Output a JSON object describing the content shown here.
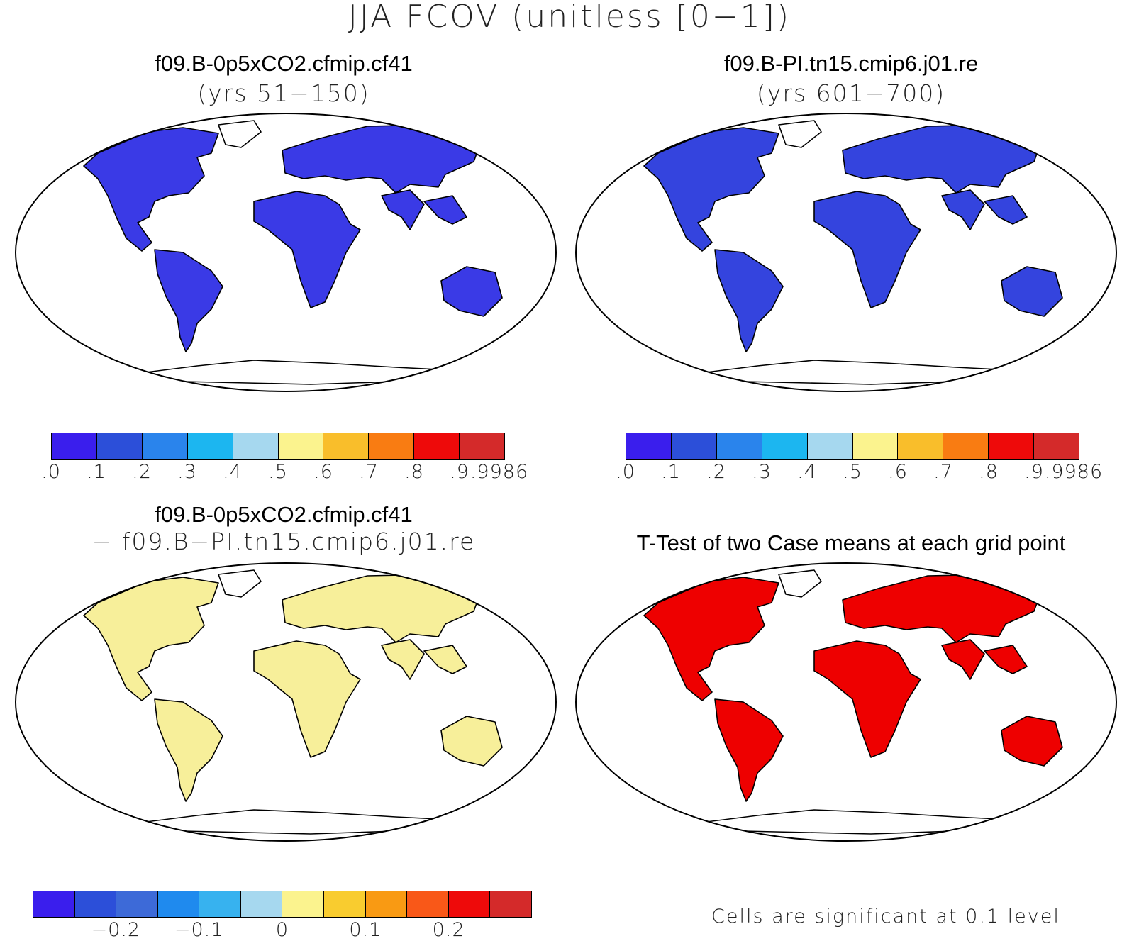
{
  "title": "JJA FCOV (unitless [0−1])",
  "panels": [
    {
      "title": "f09.B-0p5xCO2.cfmip.cf41",
      "subtitle": "(yrs 51−150)",
      "fill": "#3a3ae6"
    },
    {
      "title": "f09.B-PI.tn15.cmip6.j01.re",
      "subtitle": "(yrs 601−700)",
      "fill": "#3444de"
    },
    {
      "title": "f09.B-0p5xCO2.cfmip.cf41",
      "subtitle": "− f09.B−PI.tn15.cmip6.j01.re",
      "fill": "#f7ef9a"
    },
    {
      "title": "T-Test of two Case means at each grid point",
      "subtitle": "",
      "fill": "#ee0000"
    }
  ],
  "colorbar_top": {
    "colors": [
      "#3a1eed",
      "#2c4fd9",
      "#2a84ec",
      "#1cb6f0",
      "#a6d8ef",
      "#fbf38e",
      "#f9be2b",
      "#f97c12",
      "#ee0a0a",
      "#d42a2a"
    ],
    "ticks": [
      ".0",
      ".1",
      ".2",
      ".3",
      ".4",
      ".5",
      ".6",
      ".7",
      ".8",
      ".9",
      ".9986"
    ]
  },
  "colorbar_diff": {
    "colors": [
      "#3a1eed",
      "#2c4fd9",
      "#3d6ad8",
      "#1f8aee",
      "#37b2ef",
      "#a6d8ef",
      "#fbf38e",
      "#f9cc2f",
      "#f99a13",
      "#f95818",
      "#ee0a0a",
      "#d42a2a"
    ],
    "ticks": [
      "−0.2",
      "−0.1",
      "0",
      "0.1",
      "0.2"
    ]
  },
  "significance_note": "Cells are significant at 0.1 level"
}
